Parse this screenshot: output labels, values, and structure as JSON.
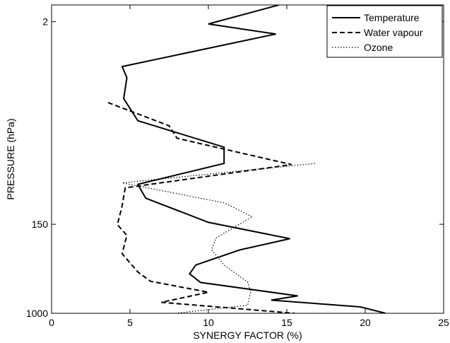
{
  "chart_data": {
    "type": "line",
    "title": "",
    "xlabel": "SYNERGY FACTOR (%)",
    "ylabel": "PRESSURE (hPa)",
    "xlim": [
      0,
      25
    ],
    "x_ticks": [
      0,
      5,
      10,
      15,
      20,
      25
    ],
    "y_scale": "log",
    "ylim_top": 1.4,
    "ylim_bottom": 1000,
    "y_ticks": [
      2,
      150,
      1000
    ],
    "grid": false,
    "legend_position": "top-right",
    "series": [
      {
        "name": "Temperature",
        "style": "solid",
        "color": "#000000",
        "points": [
          [
            14.5,
            1.4
          ],
          [
            10.0,
            2.1
          ],
          [
            14.3,
            2.6
          ],
          [
            4.5,
            5.2
          ],
          [
            4.8,
            6.6
          ],
          [
            4.6,
            10.3
          ],
          [
            5.5,
            16.5
          ],
          [
            11.0,
            29.0
          ],
          [
            11.0,
            41.0
          ],
          [
            5.5,
            64.0
          ],
          [
            6.0,
            86.0
          ],
          [
            10.0,
            144.0
          ],
          [
            15.2,
            204.0
          ],
          [
            12.0,
            259.0
          ],
          [
            9.2,
            357.0
          ],
          [
            8.8,
            431.0
          ],
          [
            9.5,
            518.0
          ],
          [
            15.7,
            690.0
          ],
          [
            14.0,
            755.0
          ],
          [
            19.7,
            873.0
          ],
          [
            21.3,
            1000.0
          ]
        ]
      },
      {
        "name": "Water vapour",
        "style": "dashed",
        "color": "#000000",
        "points": [
          [
            3.6,
            11.2
          ],
          [
            7.5,
            18.4
          ],
          [
            8.0,
            24.0
          ],
          [
            15.3,
            42.0
          ],
          [
            4.7,
            69.0
          ],
          [
            4.5,
            101.0
          ],
          [
            4.2,
            151.0
          ],
          [
            4.8,
            190.0
          ],
          [
            4.5,
            281.0
          ],
          [
            5.5,
            414.0
          ],
          [
            6.3,
            505.0
          ],
          [
            10.0,
            638.0
          ],
          [
            7.0,
            792.0
          ],
          [
            15.5,
            1000.0
          ]
        ]
      },
      {
        "name": "Ozone",
        "style": "dotted",
        "color": "#000000",
        "points": [
          [
            16.8,
            41.0
          ],
          [
            4.5,
            62.0
          ],
          [
            11.0,
            95.0
          ],
          [
            12.8,
            128.0
          ],
          [
            10.5,
            200.0
          ],
          [
            10.2,
            257.0
          ],
          [
            11.0,
            358.0
          ],
          [
            12.5,
            514.0
          ],
          [
            12.7,
            638.0
          ],
          [
            12.5,
            842.0
          ],
          [
            7.9,
            1000.0
          ]
        ]
      }
    ]
  }
}
